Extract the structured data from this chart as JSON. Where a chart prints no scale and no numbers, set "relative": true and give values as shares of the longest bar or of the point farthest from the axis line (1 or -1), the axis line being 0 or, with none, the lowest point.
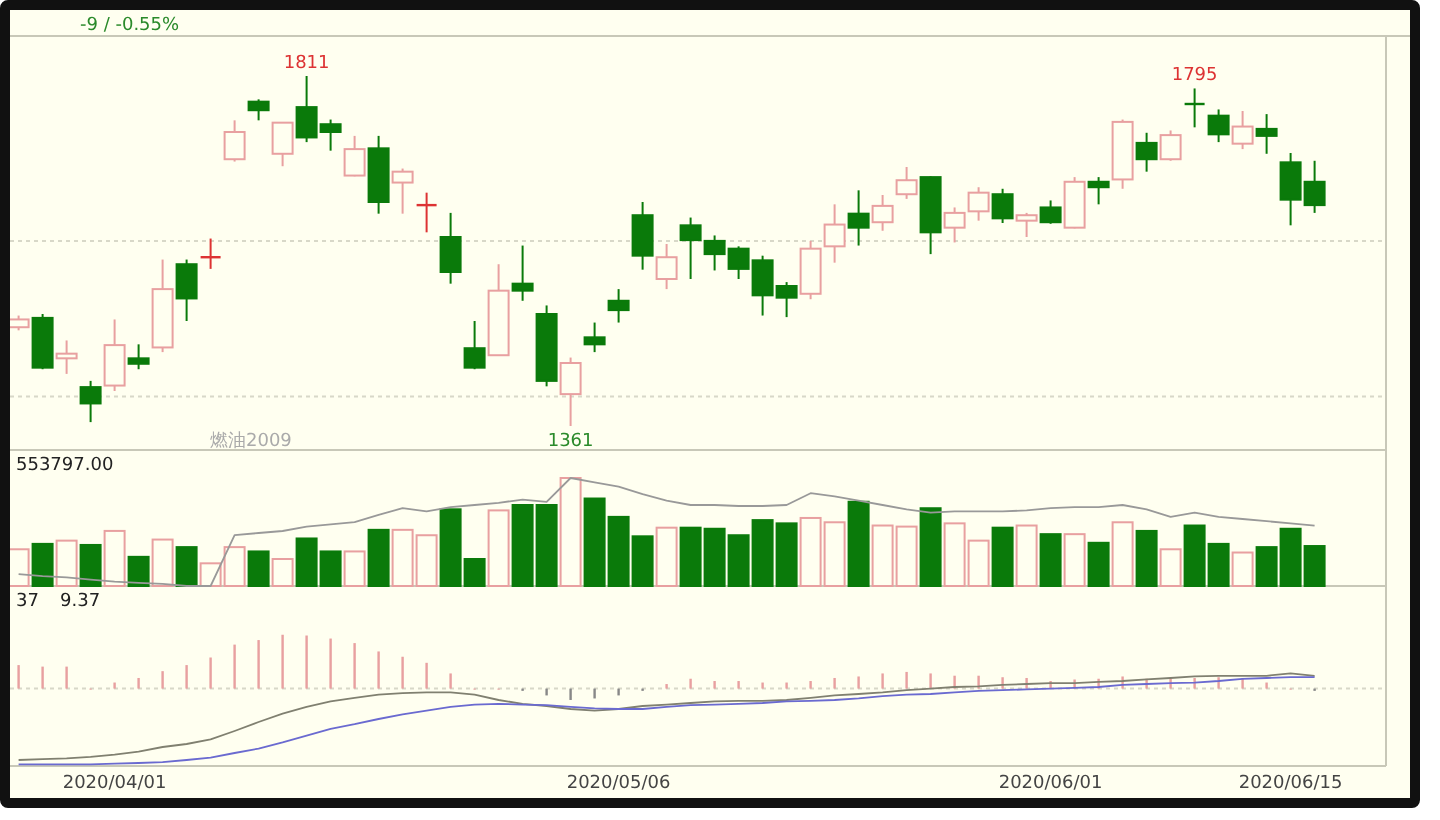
{
  "chart_data": [
    {
      "type": "candlestick",
      "ref_lines": [
        {
          "axis": "y",
          "value": 1599,
          "color": "#d8d8c8",
          "line_style": "dotted"
        },
        {
          "axis": "y",
          "value": 1399,
          "color": "#d8d8c8",
          "line_style": "dotted"
        }
      ],
      "categories": [
        null,
        null,
        null,
        null,
        null,
        null,
        null,
        null,
        null,
        null,
        null,
        null,
        null,
        null,
        null,
        null,
        null,
        null,
        null,
        null,
        null,
        null,
        null,
        null,
        null,
        null,
        null,
        null,
        null,
        null,
        null,
        null,
        null,
        null,
        null,
        null,
        null,
        null,
        null,
        null,
        null,
        null,
        null,
        null,
        null,
        null,
        null,
        null,
        null,
        null,
        null,
        null,
        null,
        null,
        null
      ],
      "ohlc": [
        [
          1488,
          1503,
          1484,
          1498
        ],
        [
          1500,
          1505,
          1434,
          1436
        ],
        [
          1448,
          1471,
          1428,
          1454
        ],
        [
          1411,
          1419,
          1366,
          1390
        ],
        [
          1413,
          1498,
          1406,
          1465
        ],
        [
          1448,
          1466,
          1434,
          1441
        ],
        [
          1462,
          1575,
          1456,
          1537
        ],
        [
          1569,
          1575,
          1496,
          1525
        ],
        [
          1578,
          1602,
          1563,
          1578
        ],
        [
          1704,
          1754,
          1701,
          1739
        ],
        [
          1778,
          1781,
          1754,
          1767
        ],
        [
          1711,
          1751,
          1695,
          1751
        ],
        [
          1771,
          1811,
          1726,
          1732
        ],
        [
          1749,
          1755,
          1715,
          1739
        ],
        [
          1683,
          1734,
          1682,
          1717
        ],
        [
          1718,
          1734,
          1634,
          1649
        ],
        [
          1674,
          1692,
          1634,
          1688
        ],
        [
          1645,
          1661,
          1610,
          1645
        ],
        [
          1604,
          1635,
          1544,
          1559
        ],
        [
          1461,
          1496,
          1434,
          1436
        ],
        [
          1452,
          1569,
          1451,
          1535
        ],
        [
          1544,
          1593,
          1522,
          1535
        ],
        [
          1505,
          1516,
          1412,
          1419
        ],
        [
          1402,
          1449,
          1361,
          1442
        ],
        [
          1475,
          1494,
          1456,
          1466
        ],
        [
          1522,
          1537,
          1494,
          1510
        ],
        [
          1632,
          1649,
          1562,
          1580
        ],
        [
          1550,
          1595,
          1537,
          1578
        ],
        [
          1619,
          1629,
          1550,
          1600
        ],
        [
          1599,
          1606,
          1561,
          1582
        ],
        [
          1589,
          1592,
          1550,
          1563
        ],
        [
          1574,
          1580,
          1503,
          1529
        ],
        [
          1541,
          1546,
          1501,
          1526
        ],
        [
          1531,
          1599,
          1524,
          1589
        ],
        [
          1592,
          1646,
          1571,
          1620
        ],
        [
          1634,
          1664,
          1593,
          1616
        ],
        [
          1623,
          1658,
          1612,
          1644
        ],
        [
          1659,
          1694,
          1653,
          1677
        ],
        [
          1681,
          1682,
          1582,
          1610
        ],
        [
          1616,
          1642,
          1597,
          1635
        ],
        [
          1637,
          1668,
          1625,
          1661
        ],
        [
          1659,
          1666,
          1622,
          1628
        ],
        [
          1625,
          1635,
          1604,
          1632
        ],
        [
          1642,
          1651,
          1621,
          1623
        ],
        [
          1616,
          1681,
          1615,
          1675
        ],
        [
          1675,
          1681,
          1646,
          1668
        ],
        [
          1678,
          1755,
          1666,
          1752
        ],
        [
          1725,
          1738,
          1688,
          1704
        ],
        [
          1704,
          1741,
          1702,
          1735
        ],
        [
          1775,
          1795,
          1745,
          1774
        ],
        [
          1760,
          1768,
          1726,
          1736
        ],
        [
          1724,
          1766,
          1717,
          1746
        ],
        [
          1743,
          1762,
          1711,
          1734
        ],
        [
          1700,
          1712,
          1619,
          1652
        ],
        [
          1675,
          1702,
          1635,
          1645
        ]
      ],
      "colors": [
        "#e8a0a0",
        "#0a7a0a",
        "#e8a0a0",
        "#0a7a0a",
        "#e8a0a0",
        "#0a7a0a",
        "#e8a0a0",
        "#0a7a0a",
        "#dd3333",
        "#e8a0a0",
        "#0a7a0a",
        "#e8a0a0",
        "#0a7a0a",
        "#0a7a0a",
        "#e8a0a0",
        "#0a7a0a",
        "#e8a0a0",
        "#dd3333",
        "#0a7a0a",
        "#0a7a0a",
        "#e8a0a0",
        "#0a7a0a",
        "#0a7a0a",
        "#e8a0a0",
        "#0a7a0a",
        "#0a7a0a",
        "#0a7a0a",
        "#e8a0a0",
        "#0a7a0a",
        "#0a7a0a",
        "#0a7a0a",
        "#0a7a0a",
        "#0a7a0a",
        "#e8a0a0",
        "#e8a0a0",
        "#0a7a0a",
        "#e8a0a0",
        "#e8a0a0",
        "#0a7a0a",
        "#e8a0a0",
        "#e8a0a0",
        "#0a7a0a",
        "#e8a0a0",
        "#0a7a0a",
        "#e8a0a0",
        "#0a7a0a",
        "#e8a0a0",
        "#0a7a0a",
        "#e8a0a0",
        "#0a7a0a",
        "#0a7a0a",
        "#e8a0a0",
        "#0a7a0a",
        "#0a7a0a",
        "#0a7a0a"
      ],
      "annotations": [
        {
          "text": "1811",
          "y": 1811
        },
        {
          "text": "1795",
          "y": 1795
        },
        {
          "text": "1361",
          "y": 1361
        },
        "-9 / -0.55%",
        "燃油2009"
      ]
    },
    {
      "type": "bar",
      "relative": true,
      "categories": [
        null,
        null,
        null,
        null,
        null,
        null,
        null,
        null,
        null,
        null,
        null,
        null,
        null,
        null,
        null,
        null,
        null,
        null,
        null,
        null,
        null,
        null,
        null,
        null,
        null,
        null,
        null,
        null,
        null,
        null,
        null,
        null,
        null,
        null,
        null,
        null,
        null,
        null,
        null,
        null,
        null,
        null,
        null,
        null,
        null,
        null,
        null,
        null,
        null,
        null,
        null,
        null,
        null,
        null,
        null
      ],
      "series": [
        {
          "type": "bar",
          "values": [
            0.34,
            0.39,
            0.42,
            0.38,
            0.51,
            0.27,
            0.43,
            0.36,
            0.21,
            0.36,
            0.32,
            0.25,
            0.44,
            0.32,
            0.32,
            0.52,
            0.52,
            0.47,
            0.71,
            0.25,
            0.7,
            0.75,
            0.75,
            1,
            0.81,
            0.64,
            0.46,
            0.54,
            0.54,
            0.53,
            0.47,
            0.61,
            0.58,
            0.63,
            0.59,
            0.78,
            0.56,
            0.55,
            0.72,
            0.58,
            0.42,
            0.54,
            0.56,
            0.48,
            0.48,
            0.4,
            0.59,
            0.51,
            0.34,
            0.56,
            0.39,
            0.31,
            0.36,
            0.53,
            0.37
          ],
          "colors": [
            "#e8a0a0",
            "#0a7a0a",
            "#e8a0a0",
            "#0a7a0a",
            "#e8a0a0",
            "#0a7a0a",
            "#e8a0a0",
            "#0a7a0a",
            "#e8a0a0",
            "#e8a0a0",
            "#0a7a0a",
            "#e8a0a0",
            "#0a7a0a",
            "#0a7a0a",
            "#e8a0a0",
            "#0a7a0a",
            "#e8a0a0",
            "#e8a0a0",
            "#0a7a0a",
            "#0a7a0a",
            "#e8a0a0",
            "#0a7a0a",
            "#0a7a0a",
            "#e8a0a0",
            "#0a7a0a",
            "#0a7a0a",
            "#0a7a0a",
            "#e8a0a0",
            "#0a7a0a",
            "#0a7a0a",
            "#0a7a0a",
            "#0a7a0a",
            "#0a7a0a",
            "#e8a0a0",
            "#e8a0a0",
            "#0a7a0a",
            "#e8a0a0",
            "#e8a0a0",
            "#0a7a0a",
            "#e8a0a0",
            "#e8a0a0",
            "#0a7a0a",
            "#e8a0a0",
            "#0a7a0a",
            "#e8a0a0",
            "#0a7a0a",
            "#e8a0a0",
            "#0a7a0a",
            "#e8a0a0",
            "#0a7a0a",
            "#0a7a0a",
            "#e8a0a0",
            "#0a7a0a",
            "#0a7a0a",
            "#0a7a0a"
          ]
        },
        {
          "type": "line",
          "color": "#999999",
          "values": [
            0.11,
            0.09,
            0.08,
            0.06,
            0.04,
            0.03,
            0.02,
            0,
            0,
            0.47,
            0.49,
            0.51,
            0.55,
            0.57,
            0.59,
            0.66,
            0.72,
            0.69,
            0.73,
            0.75,
            0.77,
            0.8,
            0.78,
            1,
            0.96,
            0.92,
            0.85,
            0.79,
            0.75,
            0.75,
            0.74,
            0.74,
            0.75,
            0.86,
            0.83,
            0.79,
            0.75,
            0.71,
            0.68,
            0.69,
            0.69,
            0.69,
            0.7,
            0.72,
            0.73,
            0.73,
            0.75,
            0.71,
            0.64,
            0.68,
            0.64,
            0.62,
            0.6,
            0.58,
            0.56
          ]
        }
      ],
      "annotations": [
        "553797.00"
      ]
    },
    {
      "type": "bar",
      "relative": true,
      "ref_lines": [
        {
          "axis": "y",
          "value": 0,
          "color": "#d8d8c8",
          "line_style": "dotted"
        }
      ],
      "categories": [
        null,
        null,
        null,
        null,
        "2020/04/01",
        null,
        null,
        null,
        null,
        null,
        null,
        null,
        null,
        null,
        null,
        null,
        null,
        null,
        null,
        null,
        null,
        null,
        null,
        null,
        null,
        "2020/05/06",
        null,
        null,
        null,
        null,
        null,
        null,
        null,
        null,
        null,
        null,
        null,
        null,
        null,
        null,
        null,
        null,
        null,
        "2020/06/01",
        null,
        null,
        null,
        null,
        null,
        null,
        null,
        null,
        null,
        "2020/06/15",
        null
      ],
      "series": [
        {
          "type": "bar",
          "values": [
            0.31,
            0.29,
            0.29,
            0,
            0.08,
            0.14,
            0.23,
            0.31,
            0.41,
            0.58,
            0.64,
            0.71,
            0.7,
            0.66,
            0.6,
            0.49,
            0.42,
            0.34,
            0.2,
            0,
            0,
            -0.03,
            -0.09,
            -0.15,
            -0.13,
            -0.09,
            -0.03,
            0.06,
            0.13,
            0.1,
            0.1,
            0.08,
            0.08,
            0.1,
            0.14,
            0.16,
            0.2,
            0.22,
            0.2,
            0.17,
            0.17,
            0.15,
            0.14,
            0.1,
            0.12,
            0.13,
            0.16,
            0.13,
            0.13,
            0.14,
            0.15,
            0.14,
            0.08,
            0,
            -0.03
          ],
          "colors": [
            "#e8a0a0",
            "#e8a0a0",
            "#e8a0a0",
            "#e8a0a0",
            "#e8a0a0",
            "#e8a0a0",
            "#e8a0a0",
            "#e8a0a0",
            "#e8a0a0",
            "#e8a0a0",
            "#e8a0a0",
            "#e8a0a0",
            "#e8a0a0",
            "#e8a0a0",
            "#e8a0a0",
            "#e8a0a0",
            "#e8a0a0",
            "#e8a0a0",
            "#e8a0a0",
            "#e8a0a0",
            "#e8a0a0",
            "#888888",
            "#888888",
            "#888888",
            "#888888",
            "#888888",
            "#888888",
            "#e8a0a0",
            "#e8a0a0",
            "#e8a0a0",
            "#e8a0a0",
            "#e8a0a0",
            "#e8a0a0",
            "#e8a0a0",
            "#e8a0a0",
            "#e8a0a0",
            "#e8a0a0",
            "#e8a0a0",
            "#e8a0a0",
            "#e8a0a0",
            "#e8a0a0",
            "#e8a0a0",
            "#e8a0a0",
            "#e8a0a0",
            "#e8a0a0",
            "#e8a0a0",
            "#e8a0a0",
            "#e8a0a0",
            "#e8a0a0",
            "#e8a0a0",
            "#e8a0a0",
            "#e8a0a0",
            "#e8a0a0",
            "#e8a0a0",
            "#888888"
          ]
        },
        {
          "type": "line",
          "color": "#808070",
          "values": [
            -0.94,
            -0.93,
            -0.92,
            -0.9,
            -0.87,
            -0.83,
            -0.77,
            -0.73,
            -0.67,
            -0.56,
            -0.44,
            -0.33,
            -0.24,
            -0.17,
            -0.12,
            -0.08,
            -0.06,
            -0.05,
            -0.05,
            -0.08,
            -0.15,
            -0.2,
            -0.23,
            -0.27,
            -0.29,
            -0.27,
            -0.23,
            -0.21,
            -0.19,
            -0.17,
            -0.16,
            -0.16,
            -0.15,
            -0.12,
            -0.09,
            -0.07,
            -0.05,
            -0.02,
            0,
            0.02,
            0.03,
            0.05,
            0.06,
            0.07,
            0.07,
            0.09,
            0.1,
            0.12,
            0.14,
            0.16,
            0.17,
            0.17,
            0.17,
            0.2,
            0.17
          ]
        },
        {
          "type": "line",
          "color": "#6a6ad0",
          "values": [
            -1,
            -1,
            -1,
            -1,
            -0.99,
            -0.98,
            -0.97,
            -0.94,
            -0.91,
            -0.85,
            -0.79,
            -0.71,
            -0.62,
            -0.53,
            -0.47,
            -0.4,
            -0.34,
            -0.29,
            -0.24,
            -0.21,
            -0.2,
            -0.21,
            -0.22,
            -0.24,
            -0.26,
            -0.27,
            -0.27,
            -0.24,
            -0.22,
            -0.21,
            -0.2,
            -0.19,
            -0.17,
            -0.16,
            -0.15,
            -0.13,
            -0.1,
            -0.08,
            -0.07,
            -0.05,
            -0.03,
            -0.02,
            -0.01,
            0,
            0.01,
            0.02,
            0.05,
            0.06,
            0.07,
            0.08,
            0.1,
            0.13,
            0.14,
            0.15,
            0.15
          ]
        }
      ],
      "annotations": [
        "37",
        "9.37"
      ]
    }
  ]
}
